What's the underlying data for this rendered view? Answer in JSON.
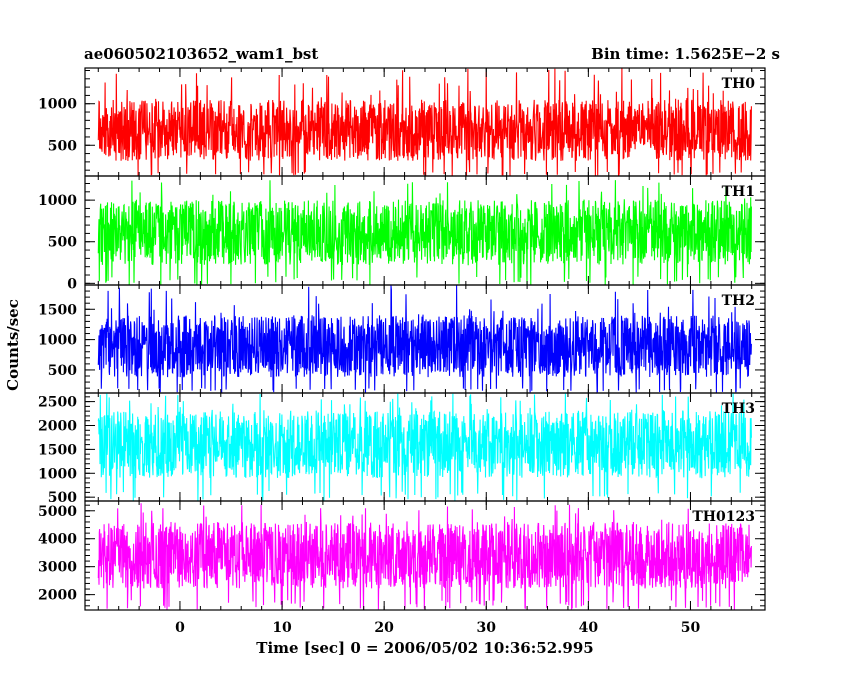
{
  "header": {
    "title_left": "ae060502103652_wam1_bst",
    "title_right": "Bin time: 1.5625E−2 s"
  },
  "chart_data": {
    "type": "line",
    "title": "ae060502103652_wam1_bst",
    "subtitle": "Bin time: 1.5625E−2 s",
    "xlabel": "Time [sec] 0 = 2006/05/02 10:36:52.995",
    "ylabel": "Counts/sec",
    "x_range": [
      -9.3,
      57.3
    ],
    "data_x_range": [
      -8.0,
      56.0
    ],
    "bin_time_s": 0.015625,
    "x_ticks": [
      0,
      10,
      20,
      30,
      40,
      50
    ],
    "grid": false,
    "legend": "none",
    "panels": [
      {
        "name": "TH0",
        "color": "#ff0000",
        "ylim": [
          130,
          1430
        ],
        "y_ticks": [
          500,
          1000
        ],
        "typical_low": 180,
        "typical_high": 1050,
        "peak": 1430
      },
      {
        "name": "TH1",
        "color": "#00ff00",
        "ylim": [
          -20,
          1290
        ],
        "y_ticks": [
          0,
          500,
          1000
        ],
        "typical_low": 80,
        "typical_high": 1000,
        "peak": 1250
      },
      {
        "name": "TH2",
        "color": "#0000ff",
        "ylim": [
          120,
          1900
        ],
        "y_ticks": [
          500,
          1000,
          1500
        ],
        "typical_low": 200,
        "typical_high": 1400,
        "peak": 1900
      },
      {
        "name": "TH3",
        "color": "#00ffff",
        "ylim": [
          420,
          2680
        ],
        "y_ticks": [
          500,
          1000,
          1500,
          2000,
          2500
        ],
        "typical_low": 650,
        "typical_high": 2300,
        "peak": 2680
      },
      {
        "name": "TH0123",
        "color": "#ff00ff",
        "ylim": [
          1450,
          5350
        ],
        "y_ticks": [
          2000,
          3000,
          4000,
          5000
        ],
        "typical_low": 1800,
        "typical_high": 4600,
        "peak": 5300
      }
    ]
  }
}
